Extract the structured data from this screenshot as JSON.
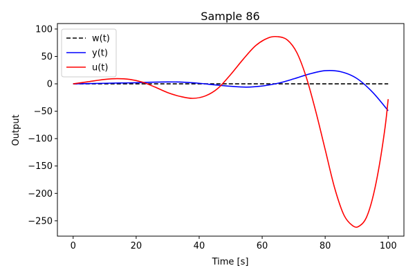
{
  "chart_data": {
    "type": "line",
    "title": "Sample 86",
    "xlabel": "Time [s]",
    "ylabel": "Output",
    "xlim": [
      -5,
      105
    ],
    "ylim": [
      -278,
      110
    ],
    "xticks": [
      0,
      20,
      40,
      60,
      80,
      100
    ],
    "yticks": [
      100,
      50,
      0,
      -50,
      -100,
      -150,
      -200,
      -250
    ],
    "grid": false,
    "legend_position": "top-left",
    "series": [
      {
        "name": "w(t)",
        "color": "#000000",
        "dash": "dashed",
        "x": [
          0,
          100
        ],
        "y": [
          0,
          0
        ]
      },
      {
        "name": "y(t)",
        "color": "#0000ff",
        "dash": "solid",
        "x": [
          0,
          5,
          10,
          15,
          20,
          25,
          30,
          35,
          40,
          45,
          50,
          55,
          60,
          65,
          70,
          75,
          80,
          85,
          90,
          95,
          100
        ],
        "y": [
          0,
          0.5,
          1,
          1.5,
          2,
          3,
          3.5,
          3,
          1,
          -2,
          -4.5,
          -6,
          -4,
          1,
          9,
          18,
          24,
          22,
          10,
          -15,
          -49
        ]
      },
      {
        "name": "u(t)",
        "color": "#ff0000",
        "dash": "solid",
        "x": [
          0,
          5,
          10,
          14,
          18,
          22,
          26,
          30,
          34,
          38,
          42,
          46,
          50,
          54,
          58,
          62,
          65,
          68,
          71,
          74,
          77,
          80,
          83,
          86,
          89,
          91,
          93,
          95,
          97,
          99,
          100
        ],
        "y": [
          0,
          4,
          8,
          9.5,
          8,
          3,
          -6,
          -16,
          -23,
          -26.5,
          -22,
          -8,
          17,
          45,
          70,
          84,
          86,
          80,
          57,
          12,
          -50,
          -120,
          -190,
          -240,
          -260,
          -259,
          -245,
          -210,
          -155,
          -80,
          -28
        ]
      }
    ]
  }
}
